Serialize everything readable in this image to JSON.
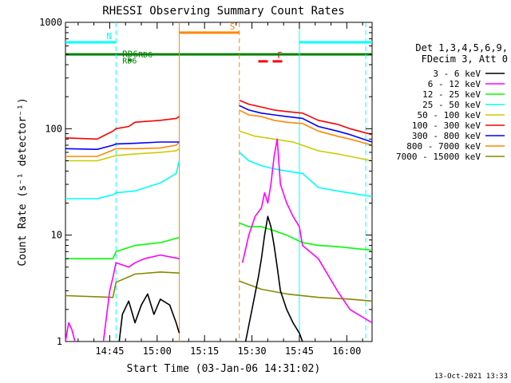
{
  "chart_data": {
    "type": "line",
    "title": "RHESSI Observing Summary Count Rates",
    "xlabel": "Start Time (03-Jan-06 14:31:02)",
    "ylabel": "Count Rate (s⁻¹ detector⁻¹)",
    "y_scale": "log",
    "ylim": [
      1,
      1000
    ],
    "xlim_minutes": [
      0,
      97
    ],
    "x_ticks": [
      {
        "m": 14,
        "label": "14:45"
      },
      {
        "m": 29,
        "label": "15:00"
      },
      {
        "m": 44,
        "label": "15:15"
      },
      {
        "m": 59,
        "label": "15:30"
      },
      {
        "m": 74,
        "label": "15:45"
      },
      {
        "m": 89,
        "label": "16:00"
      }
    ],
    "y_ticks": [
      {
        "v": 1,
        "label": "1"
      },
      {
        "v": 10,
        "label": "10"
      },
      {
        "v": 100,
        "label": "100"
      },
      {
        "v": 1000,
        "label": "1000"
      }
    ],
    "legend_header": [
      "Det 1,3,4,5,6,9,",
      "FDecim 3, Att 0"
    ],
    "legend_placement": "right",
    "series": [
      {
        "name": "3 - 6 keV",
        "color": "#000000"
      },
      {
        "name": "6 - 12 keV",
        "color": "#ff00ff"
      },
      {
        "name": "12 - 25 keV",
        "color": "#00ff00"
      },
      {
        "name": "25 - 50 keV",
        "color": "#00ffff"
      },
      {
        "name": "50 - 100 keV",
        "color": "#cccc00"
      },
      {
        "name": "100 - 300 keV",
        "color": "#ff0000"
      },
      {
        "name": "300 - 800 keV",
        "color": "#0000ff"
      },
      {
        "name": "800 - 7000 keV",
        "color": "#ff8800"
      },
      {
        "name": "7000 - 15000 keV",
        "color": "#888800"
      }
    ],
    "curves": [
      {
        "series": "7000 - 15000 keV",
        "segments": [
          [
            [
              0,
              2.7
            ],
            [
              15,
              2.6
            ],
            [
              16,
              3.6
            ],
            [
              22,
              4.3
            ],
            [
              30,
              4.5
            ],
            [
              36,
              4.4
            ]
          ],
          [
            [
              55,
              3.7
            ],
            [
              62,
              3.1
            ],
            [
              70,
              2.8
            ],
            [
              80,
              2.6
            ],
            [
              90,
              2.5
            ],
            [
              97,
              2.4
            ]
          ]
        ]
      },
      {
        "series": "12 - 25 keV",
        "segments": [
          [
            [
              0,
              6.0
            ],
            [
              15,
              6.0
            ],
            [
              16,
              7.0
            ],
            [
              22,
              8.0
            ],
            [
              30,
              8.5
            ],
            [
              36,
              9.5
            ]
          ],
          [
            [
              55,
              13
            ],
            [
              58,
              12
            ],
            [
              62,
              12
            ],
            [
              66,
              11
            ],
            [
              70,
              10
            ],
            [
              75,
              8.5
            ],
            [
              80,
              8.0
            ],
            [
              86,
              7.8
            ],
            [
              97,
              7.2
            ]
          ]
        ]
      },
      {
        "series": "25 - 50 keV",
        "segments": [
          [
            [
              0,
              22
            ],
            [
              10,
              22
            ],
            [
              15,
              24
            ],
            [
              16,
              25
            ],
            [
              22,
              26
            ],
            [
              30,
              31
            ],
            [
              35,
              38
            ],
            [
              36,
              50
            ]
          ],
          [
            [
              55,
              60
            ],
            [
              58,
              50
            ],
            [
              62,
              45
            ],
            [
              66,
              42
            ],
            [
              70,
              40
            ],
            [
              75,
              38
            ],
            [
              80,
              28
            ],
            [
              86,
              26
            ],
            [
              97,
              23
            ]
          ]
        ]
      },
      {
        "series": "50 - 100 keV",
        "segments": [
          [
            [
              0,
              50
            ],
            [
              10,
              50
            ],
            [
              15,
              55
            ],
            [
              16,
              56
            ],
            [
              22,
              58
            ],
            [
              30,
              60
            ],
            [
              35,
              62
            ],
            [
              36,
              65
            ]
          ],
          [
            [
              55,
              95
            ],
            [
              60,
              85
            ],
            [
              66,
              80
            ],
            [
              72,
              75
            ],
            [
              75,
              70
            ],
            [
              80,
              62
            ],
            [
              86,
              58
            ],
            [
              90,
              55
            ],
            [
              97,
              50
            ]
          ]
        ]
      },
      {
        "series": "800 - 7000 keV",
        "segments": [
          [
            [
              0,
              55
            ],
            [
              10,
              55
            ],
            [
              15,
              63
            ],
            [
              16,
              65
            ],
            [
              22,
              65
            ],
            [
              30,
              66
            ],
            [
              35,
              70
            ],
            [
              36,
              75
            ]
          ],
          [
            [
              55,
              150
            ],
            [
              58,
              135
            ],
            [
              62,
              130
            ],
            [
              66,
              120
            ],
            [
              70,
              115
            ],
            [
              75,
              112
            ],
            [
              80,
              95
            ],
            [
              86,
              85
            ],
            [
              90,
              80
            ],
            [
              97,
              70
            ]
          ]
        ]
      },
      {
        "series": "300 - 800 keV",
        "segments": [
          [
            [
              0,
              65
            ],
            [
              10,
              64
            ],
            [
              15,
              70
            ],
            [
              16,
              72
            ],
            [
              22,
              73
            ],
            [
              30,
              75
            ],
            [
              36,
              75
            ]
          ],
          [
            [
              55,
              165
            ],
            [
              58,
              150
            ],
            [
              62,
              140
            ],
            [
              66,
              135
            ],
            [
              70,
              130
            ],
            [
              75,
              125
            ],
            [
              80,
              105
            ],
            [
              86,
              95
            ],
            [
              90,
              88
            ],
            [
              97,
              75
            ]
          ]
        ]
      },
      {
        "series": "100 - 300 keV",
        "segments": [
          [
            [
              0,
              82
            ],
            [
              10,
              80
            ],
            [
              15,
              95
            ],
            [
              16,
              100
            ],
            [
              20,
              105
            ],
            [
              22,
              115
            ],
            [
              30,
              120
            ],
            [
              35,
              125
            ],
            [
              36,
              130
            ]
          ],
          [
            [
              55,
              185
            ],
            [
              58,
              170
            ],
            [
              62,
              160
            ],
            [
              66,
              150
            ],
            [
              70,
              145
            ],
            [
              75,
              140
            ],
            [
              80,
              120
            ],
            [
              86,
              110
            ],
            [
              90,
              100
            ],
            [
              97,
              88
            ]
          ]
        ]
      },
      {
        "series": "6 - 12 keV",
        "segments": [
          [
            [
              0,
              1.0
            ],
            [
              1,
              1.5
            ],
            [
              2,
              1.3
            ],
            [
              3,
              1.0
            ]
          ],
          [
            [
              12,
              1.0
            ],
            [
              14,
              3.0
            ],
            [
              15,
              4.0
            ],
            [
              16,
              5.5
            ],
            [
              20,
              5.0
            ],
            [
              22,
              5.5
            ],
            [
              25,
              6.0
            ],
            [
              30,
              6.5
            ],
            [
              36,
              6.0
            ]
          ],
          [
            [
              56,
              5.5
            ],
            [
              58,
              10
            ],
            [
              60,
              15
            ],
            [
              62,
              18
            ],
            [
              63,
              25
            ],
            [
              64,
              20
            ],
            [
              65,
              30
            ],
            [
              66,
              55
            ],
            [
              67,
              80
            ],
            [
              68,
              30
            ],
            [
              70,
              20
            ],
            [
              72,
              15
            ],
            [
              74,
              12
            ],
            [
              75,
              8
            ],
            [
              80,
              6
            ],
            [
              86,
              3
            ],
            [
              90,
              2
            ],
            [
              97,
              1.5
            ]
          ]
        ]
      },
      {
        "series": "3 - 6 keV",
        "segments": [
          [
            [
              17,
              1.0
            ],
            [
              18,
              1.8
            ],
            [
              20,
              2.4
            ],
            [
              22,
              1.5
            ],
            [
              24,
              2.2
            ],
            [
              26,
              2.8
            ],
            [
              28,
              1.8
            ],
            [
              30,
              2.5
            ],
            [
              33,
              2.2
            ],
            [
              35,
              1.5
            ],
            [
              36,
              1.2
            ]
          ],
          [
            [
              57,
              1.0
            ],
            [
              59,
              2.0
            ],
            [
              61,
              4.0
            ],
            [
              62,
              6.0
            ],
            [
              63,
              10
            ],
            [
              64,
              15
            ],
            [
              65,
              12
            ],
            [
              66,
              8
            ],
            [
              67,
              5
            ],
            [
              68,
              3
            ],
            [
              70,
              2
            ],
            [
              72,
              1.5
            ],
            [
              74,
              1.2
            ],
            [
              75,
              1.0
            ]
          ]
        ]
      }
    ],
    "vertical_markers": [
      {
        "m": 16,
        "color": "#00ffff",
        "style": "dashed"
      },
      {
        "m": 36,
        "color": "#ff8800",
        "style": "solid"
      },
      {
        "m": 55,
        "color": "#ff8800",
        "style": "dashed"
      },
      {
        "m": 74,
        "color": "#00ffff",
        "style": "solid"
      },
      {
        "m": 95,
        "color": "#00ffff",
        "style": "dashed"
      }
    ],
    "flag_bars": [
      {
        "label": "N",
        "color": "#00ffff",
        "y": 650,
        "segments": [
          [
            0,
            16
          ],
          [
            74,
            97
          ]
        ]
      },
      {
        "label": "S",
        "color": "#ff8800",
        "y": 800,
        "segments": [
          [
            36,
            55
          ]
        ]
      },
      {
        "label": "F",
        "color": "#ff0000",
        "y": 430,
        "style": "dashed",
        "segments": [
          [
            61,
            70
          ]
        ]
      },
      {
        "label": "",
        "color": "#008000",
        "y": 500,
        "segments": [
          [
            0,
            97
          ]
        ]
      },
      {
        "label": "RD6",
        "color": "#008000",
        "y": 440,
        "segments": [
          [
            20,
            21
          ]
        ]
      }
    ],
    "annotations": [
      {
        "text": "RD6",
        "color": "#008000",
        "m": 17,
        "v": 440
      },
      {
        "text": "RD6",
        "color": "#008000",
        "m": 22,
        "v": 500
      }
    ]
  },
  "footer": {
    "timestamp": "13-Oct-2021 13:33"
  }
}
